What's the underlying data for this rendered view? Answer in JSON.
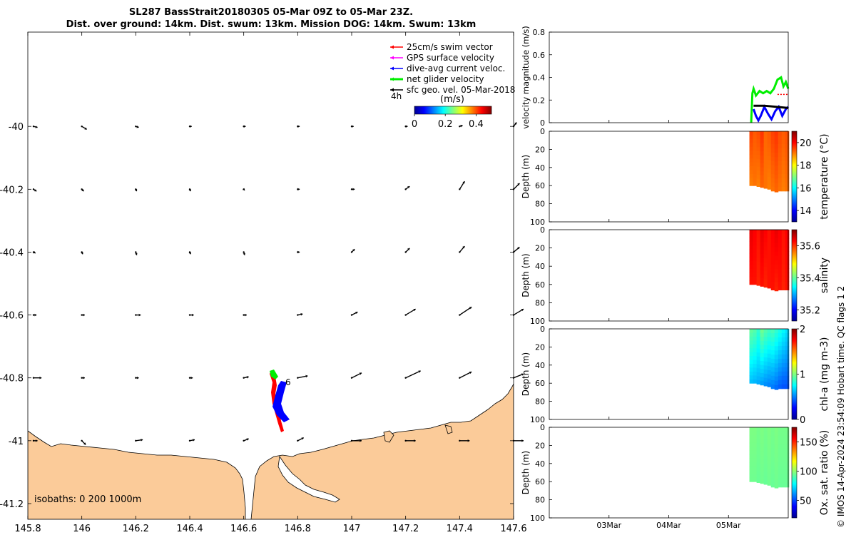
{
  "header": {
    "title_line1": "SL287 BassStrait20180305 05-Mar 09Z to 05-Mar 23Z.",
    "title_line2": "Dist. over ground: 14km. Dist. swum: 13km. Mission DOG: 14km. Swum: 13km"
  },
  "copyright": "© IMOS 14-Apr-2024 23:54:09 Hobart time. QC flags 1  2",
  "colors": {
    "land": "#fbcb99",
    "swim": "#ff0000",
    "gps": "#ff00ff",
    "current": "#0000ff",
    "net": "#00ee00",
    "geo": "#000000"
  },
  "chart_data": [
    {
      "type": "scatter",
      "name": "map",
      "xlim": [
        145.8,
        147.6
      ],
      "ylim": [
        -41.25,
        -39.7
      ],
      "x_ticks": [
        "145.8",
        "146",
        "146.2",
        "146.4",
        "146.6",
        "146.8",
        "147",
        "147.2",
        "147.4",
        "147.6"
      ],
      "y_ticks": [
        "-40",
        "-40.2",
        "-40.4",
        "-40.6",
        "-40.8",
        "-41",
        "-41.2"
      ],
      "legend": {
        "placement": "top-right",
        "items": [
          {
            "label": "25cm/s swim vector",
            "color": "#ff0000"
          },
          {
            "label": "GPS surface velocity",
            "color": "#ff00ff"
          },
          {
            "label": "dive-avg current veloc.",
            "color": "#0000ff"
          },
          {
            "label": "net glider velocity",
            "color": "#00ee00"
          },
          {
            "label": "sfc geo. vel. 05-Mar-2018",
            "color": "#000000"
          }
        ]
      },
      "legend_time_label": "4h",
      "colorbar": {
        "label": "(m/s)",
        "ticks": [
          "0",
          "0.2",
          "0.4"
        ],
        "range": [
          0,
          0.5
        ]
      },
      "track_label": "6",
      "isobaths_label": "isobaths: 0   200  1000m",
      "geo_vectors": {
        "lons": [
          145.8,
          146.0,
          146.2,
          146.4,
          146.6,
          146.8,
          147.0,
          147.2,
          147.4,
          147.6
        ],
        "lats": [
          -40.0,
          -40.2,
          -40.4,
          -40.6,
          -40.8,
          -41.0
        ],
        "u": [
          [
            0.04,
            0.05,
            0.03,
            0.02,
            0.02,
            0.02,
            0.02,
            0.02,
            0.03,
            0.03
          ],
          [
            0.03,
            0.02,
            0.01,
            0.01,
            0.01,
            0.02,
            0.03,
            0.04,
            0.05,
            0.06
          ],
          [
            0.02,
            0.01,
            0.01,
            0.01,
            0.01,
            0.02,
            0.03,
            0.04,
            0.05,
            0.06
          ],
          [
            0.03,
            0.03,
            0.05,
            0.04,
            0.03,
            0.05,
            0.06,
            0.1,
            0.12,
            0.1
          ],
          [
            0.08,
            0.03,
            0.03,
            0.03,
            0.05,
            0.1,
            0.1,
            0.15,
            0.12,
            0.1
          ],
          [
            0.04,
            0.04,
            0.07,
            0.05,
            0.05,
            0.06,
            0.1,
            0.1,
            0.1,
            0.1
          ]
        ],
        "v": [
          [
            -0.01,
            -0.03,
            -0.01,
            0.0,
            0.0,
            0.0,
            0.0,
            0.0,
            0.01,
            0.04
          ],
          [
            -0.02,
            -0.02,
            -0.02,
            -0.02,
            -0.01,
            0.0,
            0.0,
            0.03,
            0.08,
            0.06
          ],
          [
            -0.01,
            -0.02,
            -0.03,
            -0.02,
            -0.03,
            0.0,
            0.03,
            0.04,
            0.06,
            0.05
          ],
          [
            0.0,
            0.0,
            0.0,
            0.0,
            0.0,
            0.01,
            0.03,
            0.06,
            0.08,
            0.06
          ],
          [
            0.0,
            0.0,
            0.0,
            0.0,
            0.01,
            0.02,
            0.05,
            0.07,
            0.06,
            0.04
          ],
          [
            0.0,
            -0.04,
            0.01,
            0.01,
            0.02,
            0.03,
            0.0,
            0.0,
            0.0,
            0.0
          ]
        ]
      }
    },
    {
      "type": "line",
      "name": "velocity",
      "ylabel": "velocity magnitude (m/s)",
      "ylim": [
        0,
        0.8
      ],
      "y_ticks": [
        "0",
        "0.2",
        "0.4",
        "0.6",
        "0.8"
      ],
      "xlim": [
        0,
        4
      ],
      "x_ticks": [
        "03Mar",
        "04Mar",
        "05Mar"
      ],
      "x_tick_values": [
        1,
        2,
        3
      ],
      "series": [
        {
          "color": "#00ee00",
          "x": [
            3.38,
            3.4,
            3.42,
            3.46,
            3.52,
            3.58,
            3.64,
            3.7,
            3.76,
            3.82,
            3.88,
            3.92,
            3.96,
            4.0
          ],
          "y": [
            0.0,
            0.26,
            0.3,
            0.24,
            0.28,
            0.26,
            0.28,
            0.26,
            0.3,
            0.38,
            0.4,
            0.32,
            0.36,
            0.3
          ]
        },
        {
          "color": "#0000ff",
          "x": [
            3.42,
            3.46,
            3.5,
            3.54,
            3.6,
            3.66,
            3.72,
            3.78,
            3.84,
            3.9,
            3.96,
            4.0
          ],
          "y": [
            0.12,
            0.06,
            0.02,
            0.06,
            0.14,
            0.08,
            0.03,
            0.1,
            0.14,
            0.06,
            0.12,
            0.14
          ]
        },
        {
          "color": "#000000",
          "x": [
            3.42,
            3.6,
            3.8,
            4.0
          ],
          "y": [
            0.15,
            0.15,
            0.14,
            0.13
          ]
        },
        {
          "color": "#ff0000",
          "x": [
            3.82,
            3.88,
            3.94,
            4.0
          ],
          "y": [
            0.25,
            0.25,
            0.25,
            0.25
          ]
        }
      ]
    },
    {
      "type": "heatmap",
      "name": "temperature",
      "ylabel": "Depth (m)",
      "clabel": "temperature (°C)",
      "clim": [
        13,
        21
      ],
      "ctick_labels": [
        "14",
        "16",
        "18",
        "20"
      ],
      "ctick_values": [
        14,
        16,
        18,
        20
      ],
      "colormap": "jet",
      "ylim": [
        0,
        100
      ],
      "y_ticks": [
        "0",
        "20",
        "40",
        "60",
        "80",
        "100"
      ],
      "xlim": [
        0,
        4
      ],
      "x_ticks": [
        "03Mar",
        "04Mar",
        "05Mar"
      ],
      "x_tick_values": [
        1,
        2,
        3
      ],
      "data_x": [
        3.38,
        3.44,
        3.5,
        3.56,
        3.62,
        3.68,
        3.74,
        3.8,
        3.86,
        3.92,
        3.98
      ],
      "max_depth": [
        60,
        60,
        61,
        62,
        63,
        64,
        66,
        67,
        66,
        66,
        66
      ],
      "value_top": [
        19.5,
        19.3,
        19.4,
        19.6,
        19.2,
        19.3,
        19.5,
        19.6,
        19.4,
        19.3,
        19.4
      ],
      "value_bottom": [
        19.0,
        19.1,
        19.0,
        19.2,
        19.1,
        19.0,
        19.1,
        19.2,
        19.1,
        19.0,
        19.1
      ]
    },
    {
      "type": "heatmap",
      "name": "salinity",
      "ylabel": "Depth (m)",
      "clabel": "salinity",
      "clim": [
        35.13,
        35.7
      ],
      "ctick_labels": [
        "35.2",
        "35.4",
        "35.6"
      ],
      "ctick_values": [
        35.2,
        35.4,
        35.6
      ],
      "colormap": "jet",
      "ylim": [
        0,
        100
      ],
      "y_ticks": [
        "0",
        "20",
        "40",
        "60",
        "80",
        "100"
      ],
      "xlim": [
        0,
        4
      ],
      "x_ticks": [
        "03Mar",
        "04Mar",
        "05Mar"
      ],
      "x_tick_values": [
        1,
        2,
        3
      ],
      "data_x": [
        3.38,
        3.44,
        3.5,
        3.56,
        3.62,
        3.68,
        3.74,
        3.8,
        3.86,
        3.92,
        3.98
      ],
      "max_depth": [
        60,
        60,
        61,
        62,
        63,
        64,
        66,
        67,
        66,
        66,
        66
      ],
      "value_top": [
        35.64,
        35.63,
        35.62,
        35.64,
        35.63,
        35.62,
        35.63,
        35.64,
        35.63,
        35.62,
        35.63
      ],
      "value_bottom": [
        35.62,
        35.62,
        35.61,
        35.62,
        35.61,
        35.62,
        35.62,
        35.61,
        35.62,
        35.61,
        35.62
      ]
    },
    {
      "type": "heatmap",
      "name": "chl",
      "ylabel": "Depth (m)",
      "clabel": "chl-a (mg m-3)",
      "clim": [
        0,
        2
      ],
      "ctick_labels": [
        "0",
        "1",
        "2"
      ],
      "ctick_values": [
        0,
        1,
        2
      ],
      "colormap": "jet",
      "ylim": [
        0,
        100
      ],
      "y_ticks": [
        "0",
        "20",
        "40",
        "60",
        "80",
        "100"
      ],
      "xlim": [
        0,
        4
      ],
      "x_ticks": [
        "03Mar",
        "04Mar",
        "05Mar"
      ],
      "x_tick_values": [
        1,
        2,
        3
      ],
      "data_x": [
        3.38,
        3.44,
        3.5,
        3.56,
        3.62,
        3.68,
        3.74,
        3.8,
        3.86,
        3.92,
        3.98
      ],
      "max_depth": [
        60,
        60,
        61,
        62,
        63,
        64,
        66,
        67,
        66,
        66,
        66
      ],
      "value_top": [
        0.95,
        0.92,
        0.85,
        0.98,
        0.92,
        0.88,
        0.9,
        0.85,
        0.8,
        0.75,
        0.7
      ],
      "value_bottom": [
        0.62,
        0.6,
        0.58,
        0.55,
        0.52,
        0.5,
        0.48,
        0.45,
        0.42,
        0.4,
        0.4
      ]
    },
    {
      "type": "heatmap",
      "name": "oxygen",
      "ylabel": "Depth (m)",
      "clabel": "Ox. sat. ratio (%)",
      "clim": [
        20,
        175
      ],
      "ctick_labels": [
        "50",
        "100",
        "150"
      ],
      "ctick_values": [
        50,
        100,
        150
      ],
      "colormap": "jet",
      "ylim": [
        0,
        100
      ],
      "y_ticks": [
        "0",
        "20",
        "40",
        "60",
        "80",
        "100"
      ],
      "xlim": [
        0,
        4
      ],
      "x_ticks": [
        "03Mar",
        "04Mar",
        "05Mar"
      ],
      "x_tick_values": [
        1,
        2,
        3
      ],
      "data_x": [
        3.38,
        3.44,
        3.5,
        3.56,
        3.62,
        3.68,
        3.74,
        3.8,
        3.86,
        3.92,
        3.98
      ],
      "max_depth": [
        60,
        60,
        61,
        62,
        63,
        64,
        66,
        67,
        66,
        66,
        66
      ],
      "value_top": [
        97,
        97,
        96,
        97,
        96,
        97,
        96,
        97,
        96,
        96,
        96
      ],
      "value_bottom": [
        95,
        95,
        94,
        95,
        94,
        95,
        94,
        95,
        94,
        94,
        94
      ]
    }
  ]
}
